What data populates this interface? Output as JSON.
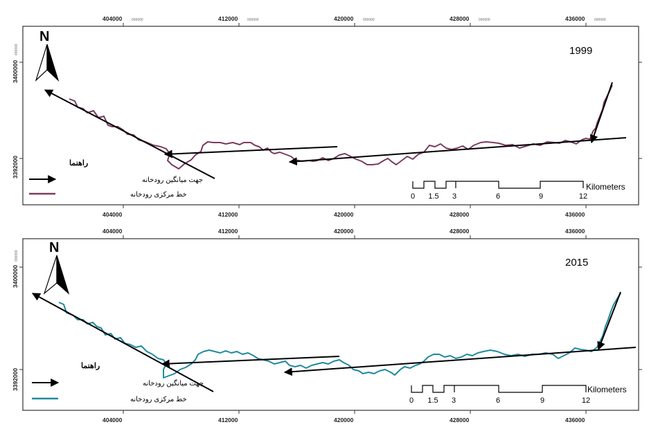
{
  "maps": [
    {
      "year": "1999",
      "x_ticks": [
        "404000",
        "412000",
        "420000",
        "428000",
        "436000"
      ],
      "y_ticks": [
        "3400000",
        "3392000"
      ],
      "tick_suffix": "000000",
      "north_label": "N",
      "legend": {
        "title": "راهنما",
        "items": [
          {
            "label": "جهت میانگین رودخانه",
            "kind": "arrow",
            "color": "#000000"
          },
          {
            "label": "خط مرکزی رودخانه",
            "kind": "line",
            "color": "#7a3b5e"
          }
        ]
      },
      "scale_bar": {
        "unit": "Kilometers",
        "ticks": [
          "0",
          "1.5",
          "3",
          "6",
          "9",
          "12"
        ]
      },
      "river_color": "#7a3b5e"
    },
    {
      "year": "2015",
      "x_ticks": [
        "404000",
        "412000",
        "420000",
        "428000",
        "436000"
      ],
      "y_ticks": [
        "3400000",
        "3392000"
      ],
      "tick_suffix": "000000",
      "north_label": "N",
      "legend": {
        "title": "راهنما",
        "items": [
          {
            "label": "جهت میانگین رودخانه",
            "kind": "arrow",
            "color": "#000000"
          },
          {
            "label": "خط مرکزی رودخانه",
            "kind": "line",
            "color": "#1f8a9e"
          }
        ]
      },
      "scale_bar": {
        "unit": "Kilometers",
        "ticks": [
          "0",
          "1.5",
          "3",
          "6",
          "9",
          "12"
        ]
      },
      "river_color": "#1f8a9e"
    }
  ]
}
